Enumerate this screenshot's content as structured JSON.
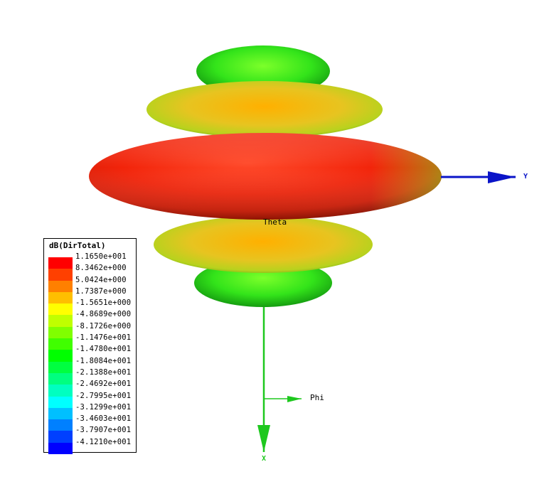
{
  "plot": {
    "theta_label": "Theta",
    "axes": [
      {
        "name": "Y",
        "color": "#0a14c8"
      },
      {
        "name": "X",
        "color": "#1ec81e"
      },
      {
        "name": "Phi",
        "color": "#1ec81e"
      }
    ],
    "colors": {
      "outer_ring": "#22dd22",
      "middle_ring": "#e6c21e",
      "main_lobe": "#f22a0a"
    }
  },
  "legend": {
    "title": "dB(DirTotal)",
    "entries": [
      {
        "label": "1.1650e+001",
        "color": "#ff0000"
      },
      {
        "label": "8.3462e+000",
        "color": "#ff4000"
      },
      {
        "label": "5.0424e+000",
        "color": "#ff8000"
      },
      {
        "label": "1.7387e+000",
        "color": "#ffbf00"
      },
      {
        "label": "-1.5651e+000",
        "color": "#ffff00"
      },
      {
        "label": "-4.8689e+000",
        "color": "#c0ff00"
      },
      {
        "label": "-8.1726e+000",
        "color": "#80ff00"
      },
      {
        "label": "-1.1476e+001",
        "color": "#40ff00"
      },
      {
        "label": "-1.4780e+001",
        "color": "#00ff00"
      },
      {
        "label": "-1.8084e+001",
        "color": "#00ff40"
      },
      {
        "label": "-2.1388e+001",
        "color": "#00ff80"
      },
      {
        "label": "-2.4692e+001",
        "color": "#00ffc0"
      },
      {
        "label": "-2.7995e+001",
        "color": "#00ffff"
      },
      {
        "label": "-3.1299e+001",
        "color": "#00c0ff"
      },
      {
        "label": "-3.4603e+001",
        "color": "#0080ff"
      },
      {
        "label": "-3.7907e+001",
        "color": "#0040ff"
      },
      {
        "label": "-4.1210e+001",
        "color": "#0000ff"
      }
    ]
  }
}
